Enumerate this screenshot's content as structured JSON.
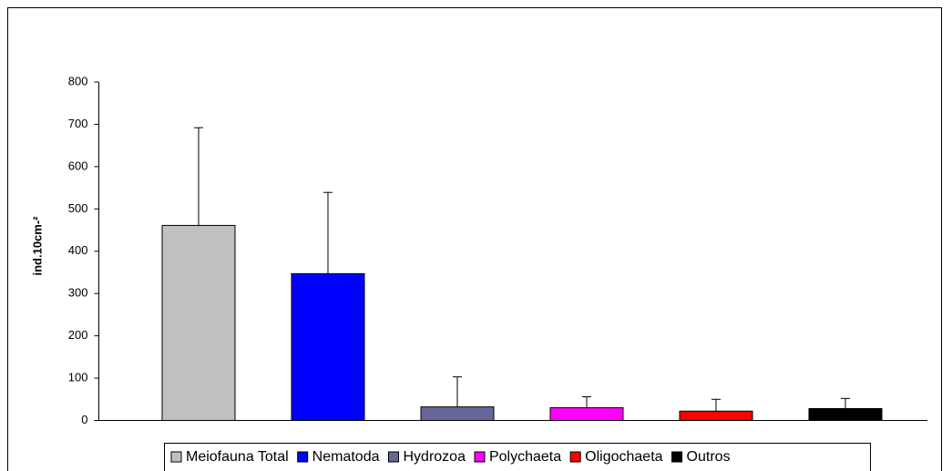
{
  "chart_data": {
    "type": "bar",
    "y_label": "ind.10cm-²",
    "series": [
      {
        "name": "Meiofauna Total",
        "color": "#c0c0c0",
        "values": [
          461
        ],
        "errors": [
          231
        ]
      },
      {
        "name": "Nematoda",
        "color": "#0000ff",
        "values": [
          347
        ],
        "errors": [
          192
        ]
      },
      {
        "name": "Hydrozoa",
        "color": "#666699",
        "values": [
          32
        ],
        "errors": [
          71
        ]
      },
      {
        "name": "Polychaeta",
        "color": "#ff00ff",
        "values": [
          30
        ],
        "errors": [
          26
        ]
      },
      {
        "name": "Oligochaeta",
        "color": "#ff0000",
        "values": [
          22
        ],
        "errors": [
          28
        ]
      },
      {
        "name": "Outros",
        "color": "#000000",
        "values": [
          28
        ],
        "errors": [
          24
        ]
      }
    ],
    "ylim": [
      0,
      800
    ],
    "yticks": [
      0,
      100,
      200,
      300,
      400,
      500,
      600,
      700,
      800
    ],
    "grid": false,
    "legend": "bottom"
  }
}
